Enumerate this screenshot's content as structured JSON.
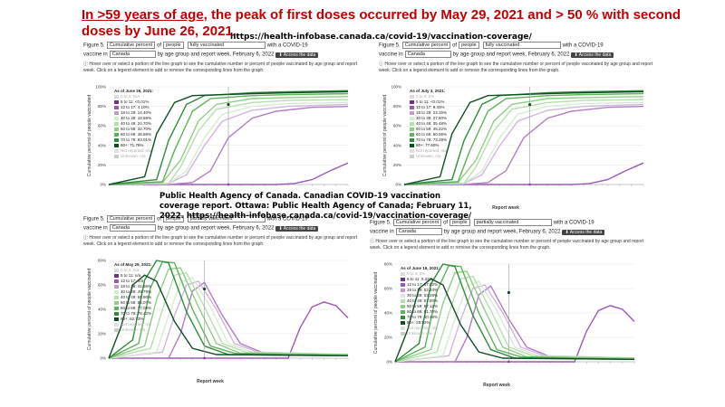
{
  "headline": {
    "prefix": "In >59 years of age",
    "rest": ", the peak of first doses occurred by May 29, 2021 and > 50 % with second doses by June 26, 2021."
  },
  "source_url": "https://health-infobase.canada.ca/covid-19/vaccination-coverage/",
  "citation": "Public Health Agency of Canada. Canadian COVID-19 vaccination coverage report. Ottawa: Public Health Agency of Canada; February 11, 2022. https://health-infobase.canada.ca/covid-19/vaccination-coverage/",
  "common": {
    "figure_label": "Figure 5.",
    "of_label": "of",
    "people_option": "people",
    "with_text": "with a COVID-19",
    "vaccine_in": "vaccine in",
    "region": "Canada",
    "by_text": "by age group and report week, February 6, 2022",
    "download": "Access the data",
    "hint": "Hover over or select a portion of the line graph to see the cumulative number or percent of people vaccinated by age group and report week. Click on a legend element to add or remove the corresponding lines from the graph.",
    "measure": "Cumulative percent",
    "ylabel": "Cumulative percent of people vaccinated",
    "xlabel": "Report week"
  },
  "panels": [
    {
      "status": "fully vaccinated",
      "legend_title": "As of June 26, 2021:",
      "legend": [
        "0 to 4: N/A",
        "5 to 11: <0.01%",
        "12 to 17: 4.10%",
        "18 to 29: 14.40%",
        "30 to 39: 18.59%",
        "40 to 49: 24.70%",
        "50 to 59: 32.70%",
        "60 to 69: 48.89%",
        "70 to 79: 63.01%",
        "80+: 71.76%",
        "Not reported: n/a",
        "Unknown: n/a"
      ],
      "show_xlabel": false
    },
    {
      "status": "fully vaccinated",
      "legend_title": "As of July 3, 2021:",
      "legend": [
        "0 to 4: 0%",
        "5 to 11: <0.01%",
        "12 to 17: 9.43%",
        "18 to 29: 23.15%",
        "30 to 39: 27.60%",
        "40 to 49: 35.48%",
        "50 to 59: 45.22%",
        "60 to 69: 60.06%",
        "70 to 79: 73.28%",
        "80+: 77.60%",
        "Not reported: n/a",
        "Unknown: n/a"
      ],
      "show_xlabel": true
    },
    {
      "status": "partially vaccinated",
      "legend_title": "As of May 29, 2021:",
      "legend": [
        "0 to 4: n/a",
        "5 to 11: n/a",
        "12 to 17: n/a",
        "18 to 29: 41.66%",
        "30 to 39: 49.79%",
        "40 to 49: 59.90%",
        "50 to 59: 65.07%",
        "60 to 69: 77.09%",
        "70 to 79: 78.42%",
        "80+: 62.73%",
        "Not reported: n/a",
        "Unknown: n/a"
      ],
      "show_xlabel": true
    },
    {
      "status": "partially vaccinated",
      "legend_title": "As of June 19, 2021:",
      "legend": [
        "0 to 4: 0%",
        "5 to 11: 0.32%",
        "12 to 17: 57.02%",
        "18 to 29: 52.34%",
        "30 to 39: 53.28%",
        "40 to 49: 57.80%",
        "50 to 59: 57.12%",
        "60 to 69: 51.70%",
        "70 to 79: 40.48%",
        "80+: 28.92%",
        "Not reported: n/a",
        "Unknown: n/a"
      ],
      "show_xlabel": true
    }
  ],
  "chart_data": [
    {
      "type": "line",
      "ylabel": "Cumulative percent of people vaccinated",
      "xlabel": "",
      "ylim": [
        0,
        100
      ],
      "yticks": [
        "0%",
        "20%",
        "40%",
        "60%",
        "80%",
        "100%"
      ],
      "marker_date": "June 26, 2021",
      "series": [
        {
          "name": "5 to 11",
          "color": "#9b59b6",
          "x": [
            0,
            10,
            20,
            28,
            31,
            34,
            37,
            40
          ],
          "y": [
            0,
            0,
            0,
            0,
            1,
            5,
            14,
            22
          ]
        },
        {
          "name": "12 to 17",
          "color": "#b07cc6",
          "x": [
            0,
            10,
            14,
            17,
            20,
            24,
            28,
            34,
            40
          ],
          "y": [
            0,
            0,
            2,
            14,
            48,
            68,
            75,
            79,
            80
          ]
        },
        {
          "name": "18 to 29",
          "color": "#d2b4de",
          "x": [
            0,
            10,
            13,
            16,
            19,
            24,
            30,
            40
          ],
          "y": [
            0,
            1,
            10,
            40,
            65,
            76,
            80,
            82
          ]
        },
        {
          "name": "30 to 39",
          "color": "#d5ecd0",
          "x": [
            0,
            10,
            13,
            16,
            19,
            24,
            30,
            40
          ],
          "y": [
            0,
            1,
            14,
            48,
            72,
            80,
            83,
            84
          ]
        },
        {
          "name": "40 to 49",
          "color": "#b5dfad",
          "x": [
            0,
            10,
            12,
            15,
            18,
            24,
            30,
            40
          ],
          "y": [
            0,
            1,
            18,
            55,
            77,
            84,
            86,
            87
          ]
        },
        {
          "name": "50 to 59",
          "color": "#8fce87",
          "x": [
            0,
            9,
            12,
            15,
            18,
            24,
            30,
            40
          ],
          "y": [
            0,
            2,
            25,
            65,
            82,
            88,
            89,
            90
          ]
        },
        {
          "name": "60 to 69",
          "color": "#5fb35a",
          "x": [
            0,
            9,
            11,
            14,
            17,
            24,
            30,
            40
          ],
          "y": [
            0,
            3,
            35,
            75,
            88,
            91,
            92,
            93
          ]
        },
        {
          "name": "70 to 79",
          "color": "#2f8c3a",
          "x": [
            0,
            8,
            10,
            13,
            16,
            24,
            30,
            40
          ],
          "y": [
            0,
            5,
            45,
            82,
            91,
            94,
            95,
            96
          ]
        },
        {
          "name": "80+",
          "color": "#114d24",
          "x": [
            0,
            6,
            8,
            11,
            14,
            24,
            30,
            40
          ],
          "y": [
            0,
            8,
            52,
            84,
            91,
            93,
            94,
            95
          ]
        }
      ]
    },
    {
      "type": "line",
      "ylabel": "Cumulative percent of people vaccinated",
      "xlabel": "Report week",
      "ylim": [
        0,
        100
      ],
      "yticks": [
        "0%",
        "20%",
        "40%",
        "60%",
        "80%",
        "100%"
      ],
      "marker_date": "July 3, 2021",
      "series": [
        {
          "name": "5 to 11",
          "color": "#9b59b6",
          "x": [
            0,
            10,
            20,
            28,
            31,
            34,
            37,
            40
          ],
          "y": [
            0,
            0,
            0,
            0,
            1,
            5,
            14,
            22
          ]
        },
        {
          "name": "12 to 17",
          "color": "#b07cc6",
          "x": [
            0,
            10,
            14,
            17,
            20,
            24,
            28,
            34,
            40
          ],
          "y": [
            0,
            0,
            2,
            14,
            48,
            68,
            75,
            79,
            80
          ]
        },
        {
          "name": "18 to 29",
          "color": "#d2b4de",
          "x": [
            0,
            10,
            13,
            16,
            19,
            24,
            30,
            40
          ],
          "y": [
            0,
            1,
            10,
            40,
            65,
            76,
            80,
            82
          ]
        },
        {
          "name": "30 to 39",
          "color": "#d5ecd0",
          "x": [
            0,
            10,
            13,
            16,
            19,
            24,
            30,
            40
          ],
          "y": [
            0,
            1,
            14,
            48,
            72,
            80,
            83,
            84
          ]
        },
        {
          "name": "40 to 49",
          "color": "#b5dfad",
          "x": [
            0,
            10,
            12,
            15,
            18,
            24,
            30,
            40
          ],
          "y": [
            0,
            1,
            18,
            55,
            77,
            84,
            86,
            87
          ]
        },
        {
          "name": "50 to 59",
          "color": "#8fce87",
          "x": [
            0,
            9,
            12,
            15,
            18,
            24,
            30,
            40
          ],
          "y": [
            0,
            2,
            25,
            65,
            82,
            88,
            89,
            90
          ]
        },
        {
          "name": "60 to 69",
          "color": "#5fb35a",
          "x": [
            0,
            9,
            11,
            14,
            17,
            24,
            30,
            40
          ],
          "y": [
            0,
            3,
            35,
            75,
            88,
            91,
            92,
            93
          ]
        },
        {
          "name": "70 to 79",
          "color": "#2f8c3a",
          "x": [
            0,
            8,
            10,
            13,
            16,
            24,
            30,
            40
          ],
          "y": [
            0,
            5,
            45,
            82,
            91,
            94,
            95,
            96
          ]
        },
        {
          "name": "80+",
          "color": "#114d24",
          "x": [
            0,
            6,
            8,
            11,
            14,
            24,
            30,
            40
          ],
          "y": [
            0,
            8,
            52,
            84,
            91,
            93,
            94,
            95
          ]
        }
      ]
    },
    {
      "type": "line",
      "ylabel": "Cumulative percent of people vaccinated",
      "xlabel": "Report week",
      "ylim": [
        0,
        80
      ],
      "yticks": [
        "0%",
        "20%",
        "40%",
        "60%",
        "80%"
      ],
      "marker_date": "May 29, 2021",
      "series": [
        {
          "name": "5 to 11",
          "color": "#9b59b6",
          "x": [
            0,
            20,
            30,
            32,
            34,
            36,
            38,
            40
          ],
          "y": [
            0,
            0,
            0,
            25,
            42,
            46,
            43,
            33
          ]
        },
        {
          "name": "12 to 17",
          "color": "#b07cc6",
          "x": [
            0,
            10,
            12,
            14,
            16,
            19,
            22,
            26,
            40
          ],
          "y": [
            0,
            0,
            20,
            55,
            62,
            35,
            12,
            4,
            2
          ]
        },
        {
          "name": "18 to 29",
          "color": "#d2b4de",
          "x": [
            0,
            9,
            11,
            13,
            15,
            18,
            21,
            25,
            40
          ],
          "y": [
            0,
            5,
            35,
            60,
            63,
            40,
            12,
            5,
            3
          ]
        },
        {
          "name": "30 to 39",
          "color": "#d5ecd0",
          "x": [
            0,
            8,
            10,
            12,
            14,
            17,
            20,
            24,
            40
          ],
          "y": [
            0,
            5,
            35,
            62,
            66,
            42,
            12,
            5,
            3
          ]
        },
        {
          "name": "40 to 49",
          "color": "#b5dfad",
          "x": [
            0,
            7,
            9,
            11,
            13,
            16,
            19,
            23,
            40
          ],
          "y": [
            0,
            8,
            40,
            68,
            70,
            42,
            12,
            5,
            3
          ]
        },
        {
          "name": "50 to 59",
          "color": "#8fce87",
          "x": [
            0,
            6,
            8,
            10,
            12,
            15,
            18,
            22,
            40
          ],
          "y": [
            0,
            10,
            48,
            73,
            74,
            42,
            12,
            4,
            3
          ]
        },
        {
          "name": "60 to 69",
          "color": "#5fb35a",
          "x": [
            0,
            5,
            7,
            9,
            11,
            14,
            17,
            21,
            40
          ],
          "y": [
            0,
            12,
            58,
            79,
            78,
            40,
            10,
            4,
            2
          ]
        },
        {
          "name": "70 to 79",
          "color": "#2f8c3a",
          "x": [
            0,
            4,
            6,
            8,
            10,
            13,
            16,
            20,
            40
          ],
          "y": [
            0,
            15,
            64,
            80,
            78,
            38,
            10,
            3,
            2
          ]
        },
        {
          "name": "80+",
          "color": "#114d24",
          "x": [
            0,
            2,
            4,
            6,
            8,
            11,
            14,
            18,
            40
          ],
          "y": [
            0,
            25,
            60,
            68,
            63,
            30,
            8,
            3,
            2
          ]
        }
      ]
    },
    {
      "type": "line",
      "ylabel": "Cumulative percent of people vaccinated",
      "xlabel": "Report week",
      "ylim": [
        0,
        80
      ],
      "yticks": [
        "0%",
        "20%",
        "40%",
        "60%",
        "80%"
      ],
      "marker_date": "June 19, 2021",
      "series": [
        {
          "name": "5 to 11",
          "color": "#9b59b6",
          "x": [
            0,
            20,
            30,
            32,
            34,
            36,
            38,
            40
          ],
          "y": [
            0,
            0,
            0,
            25,
            42,
            46,
            43,
            33
          ]
        },
        {
          "name": "12 to 17",
          "color": "#b07cc6",
          "x": [
            0,
            10,
            12,
            14,
            16,
            19,
            22,
            26,
            40
          ],
          "y": [
            0,
            0,
            20,
            55,
            62,
            35,
            12,
            4,
            2
          ]
        },
        {
          "name": "18 to 29",
          "color": "#d2b4de",
          "x": [
            0,
            9,
            11,
            13,
            15,
            18,
            21,
            25,
            40
          ],
          "y": [
            0,
            5,
            35,
            60,
            63,
            40,
            12,
            5,
            3
          ]
        },
        {
          "name": "30 to 39",
          "color": "#d5ecd0",
          "x": [
            0,
            8,
            10,
            12,
            14,
            17,
            20,
            24,
            40
          ],
          "y": [
            0,
            5,
            35,
            62,
            66,
            42,
            12,
            5,
            3
          ]
        },
        {
          "name": "40 to 49",
          "color": "#b5dfad",
          "x": [
            0,
            7,
            9,
            11,
            13,
            16,
            19,
            23,
            40
          ],
          "y": [
            0,
            8,
            40,
            68,
            70,
            42,
            12,
            5,
            3
          ]
        },
        {
          "name": "50 to 59",
          "color": "#8fce87",
          "x": [
            0,
            6,
            8,
            10,
            12,
            15,
            18,
            22,
            40
          ],
          "y": [
            0,
            10,
            48,
            73,
            74,
            42,
            12,
            4,
            3
          ]
        },
        {
          "name": "60 to 69",
          "color": "#5fb35a",
          "x": [
            0,
            5,
            7,
            9,
            11,
            14,
            17,
            21,
            40
          ],
          "y": [
            0,
            12,
            58,
            79,
            78,
            40,
            10,
            4,
            2
          ]
        },
        {
          "name": "70 to 79",
          "color": "#2f8c3a",
          "x": [
            0,
            4,
            6,
            8,
            10,
            13,
            16,
            20,
            40
          ],
          "y": [
            0,
            15,
            64,
            80,
            78,
            38,
            10,
            3,
            2
          ]
        },
        {
          "name": "80+",
          "color": "#114d24",
          "x": [
            0,
            2,
            4,
            6,
            8,
            11,
            14,
            18,
            40
          ],
          "y": [
            0,
            25,
            60,
            68,
            63,
            30,
            8,
            3,
            2
          ]
        }
      ]
    }
  ]
}
